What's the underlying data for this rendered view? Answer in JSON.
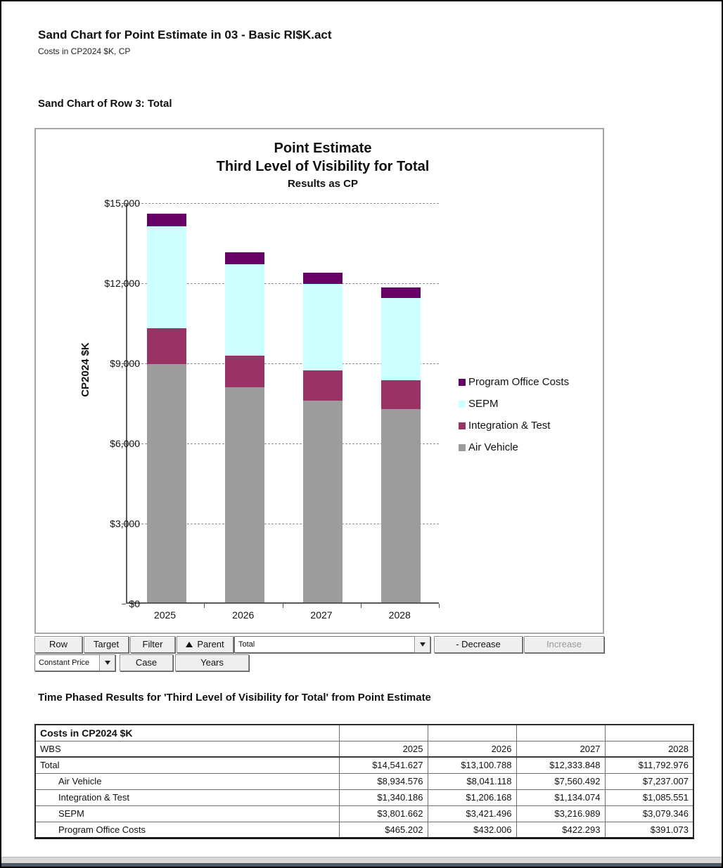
{
  "page": {
    "title": "Sand Chart for Point Estimate in 03 - Basic RI$K.act",
    "subtitle": "Costs in CP2024 $K, CP",
    "sand_chart_heading": "Sand Chart of Row 3: Total",
    "table_heading": "Time Phased Results for 'Third Level of Visibility for Total' from Point Estimate"
  },
  "chart_data": {
    "type": "bar",
    "stacked": true,
    "title_lines": [
      "Point Estimate",
      "Third Level of Visibility for Total"
    ],
    "subtitle": "Results as CP",
    "ylabel": "CP2024 $K",
    "categories": [
      "2025",
      "2026",
      "2027",
      "2028"
    ],
    "series": [
      {
        "name": "Air Vehicle",
        "color": "#9c9c9c",
        "values": [
          8934.576,
          8041.118,
          7560.492,
          7237.007
        ]
      },
      {
        "name": "Integration & Test",
        "color": "#993366",
        "values": [
          1340.186,
          1206.168,
          1134.074,
          1085.551
        ]
      },
      {
        "name": "SEPM",
        "color": "#ccffff",
        "values": [
          3801.662,
          3421.496,
          3216.989,
          3079.346
        ]
      },
      {
        "name": "Program Office Costs",
        "color": "#660066",
        "values": [
          465.202,
          432.006,
          422.293,
          391.073
        ]
      }
    ],
    "totals": [
      14541.627,
      13100.788,
      12333.848,
      11792.976
    ],
    "ylim": [
      0,
      15000
    ],
    "yticks": [
      {
        "value": 0,
        "label": "$0"
      },
      {
        "value": 3000,
        "label": "$3,000"
      },
      {
        "value": 6000,
        "label": "$6,000"
      },
      {
        "value": 9000,
        "label": "$9,000"
      },
      {
        "value": 12000,
        "label": "$12,000"
      },
      {
        "value": 15000,
        "label": "$15,000"
      }
    ],
    "grid": "horizontal-dashed",
    "legend_position": "right",
    "legend_order": [
      "Program Office Costs",
      "SEPM",
      "Integration & Test",
      "Air Vehicle"
    ]
  },
  "toolbar": {
    "row_label": "Row",
    "target_label": "Target",
    "filter_label": "Filter",
    "parent_label": "Parent",
    "parent_icon_glyph": "",
    "selection_combo_value": "Total",
    "decrease_label": "- Decrease",
    "increase_label": "Increase",
    "increase_enabled": false,
    "price_combo_value": "Constant Price",
    "case_label": "Case",
    "years_label": "Years"
  },
  "table": {
    "header": "Costs in CP2024 $K",
    "row_header_label": "WBS",
    "year_headers": [
      "2025",
      "2026",
      "2027",
      "2028"
    ],
    "rows": [
      {
        "label": "Total",
        "indent": false,
        "values": [
          "$14,541.627",
          "$13,100.788",
          "$12,333.848",
          "$11,792.976"
        ]
      },
      {
        "label": "Air Vehicle",
        "indent": true,
        "values": [
          "$8,934.576",
          "$8,041.118",
          "$7,560.492",
          "$7,237.007"
        ]
      },
      {
        "label": "Integration & Test",
        "indent": true,
        "values": [
          "$1,340.186",
          "$1,206.168",
          "$1,134.074",
          "$1,085.551"
        ]
      },
      {
        "label": "SEPM",
        "indent": true,
        "values": [
          "$3,801.662",
          "$3,421.496",
          "$3,216.989",
          "$3,079.346"
        ]
      },
      {
        "label": "Program Office Costs",
        "indent": true,
        "values": [
          "$465.202",
          "$432.006",
          "$422.293",
          "$391.073"
        ]
      }
    ]
  }
}
